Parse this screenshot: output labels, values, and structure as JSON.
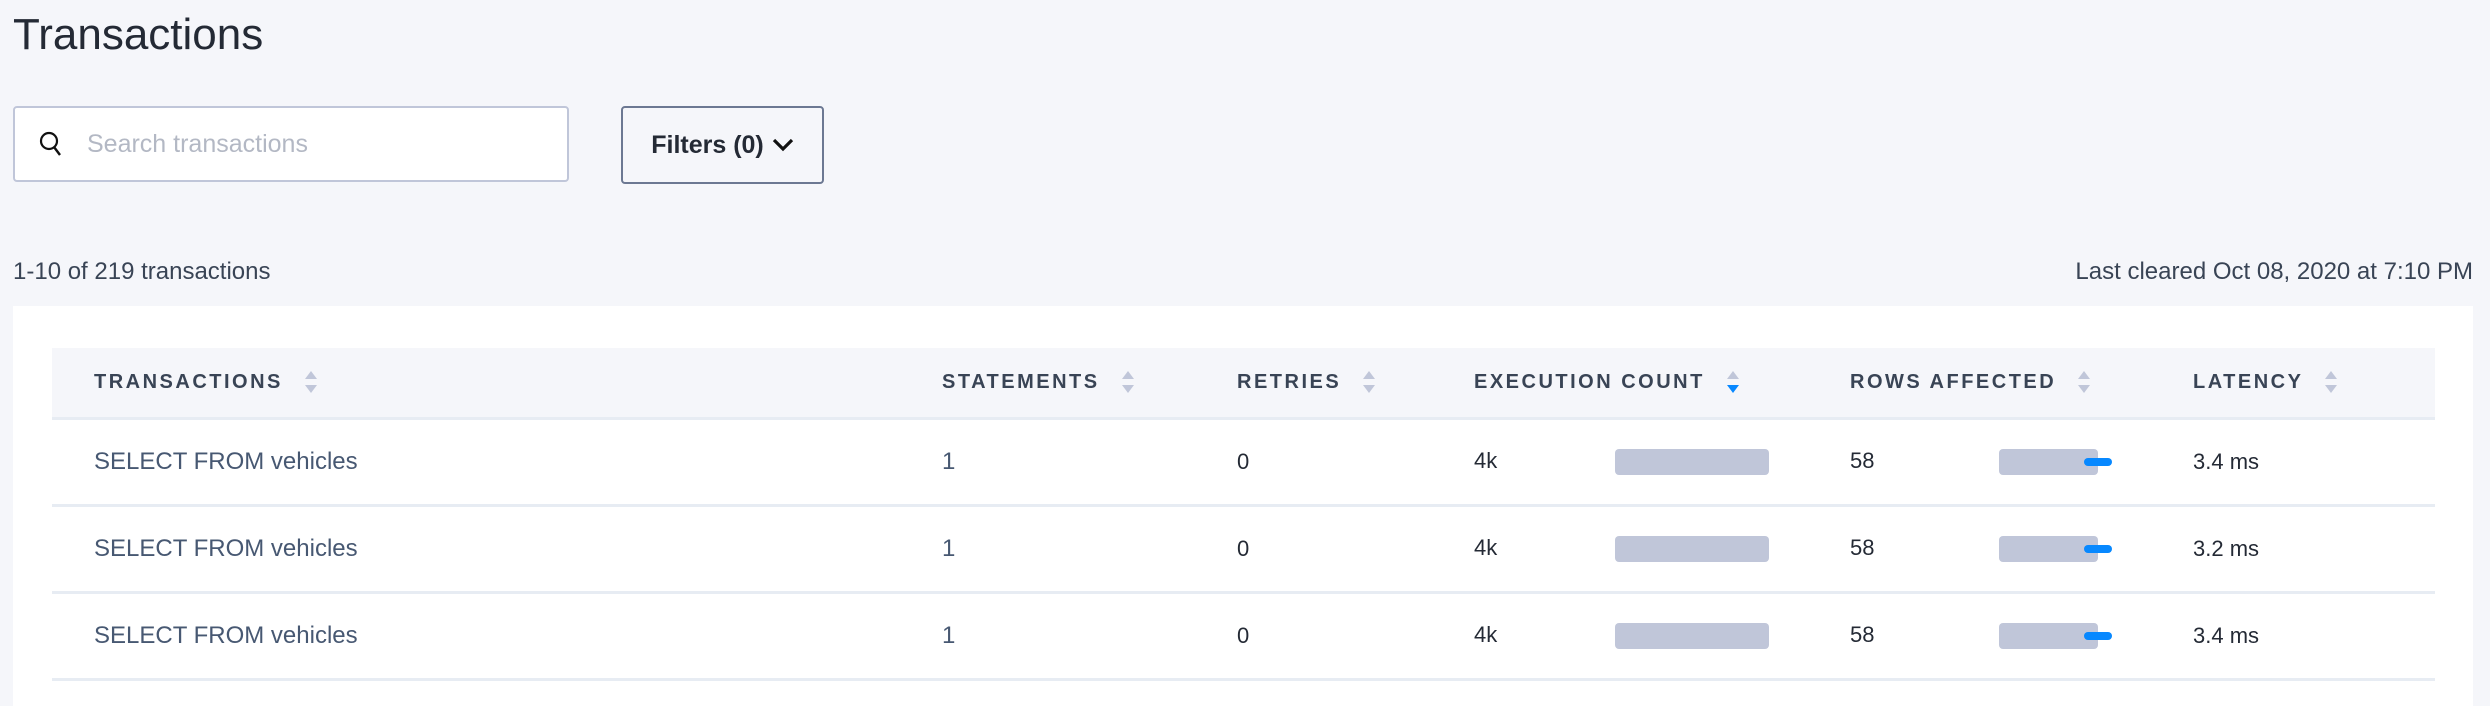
{
  "page": {
    "title": "Transactions"
  },
  "search": {
    "placeholder": "Search transactions",
    "value": ""
  },
  "filters": {
    "label": "Filters (0)"
  },
  "summary": {
    "range": "1-10 of 219 transactions",
    "last_cleared": "Last cleared Oct 08, 2020 at 7:10 PM"
  },
  "colors": {
    "accent": "#0788ff",
    "bar": "#c0c6d9"
  },
  "table": {
    "columns": [
      {
        "label": "TRANSACTIONS",
        "sort": "none"
      },
      {
        "label": "STATEMENTS",
        "sort": "none"
      },
      {
        "label": "RETRIES",
        "sort": "none"
      },
      {
        "label": "EXECUTION COUNT",
        "sort": "descending"
      },
      {
        "label": "ROWS AFFECTED",
        "sort": "none"
      },
      {
        "label": "LATENCY",
        "sort": "none"
      }
    ],
    "rows": [
      {
        "transaction": "SELECT FROM vehicles",
        "statements": "1",
        "retries": "0",
        "execution_count": "4k",
        "execution_bar_fraction": 1.0,
        "rows_affected": "58",
        "rows_bar_fraction": 0.6,
        "latency": "3.4 ms"
      },
      {
        "transaction": "SELECT FROM vehicles",
        "statements": "1",
        "retries": "0",
        "execution_count": "4k",
        "execution_bar_fraction": 1.0,
        "rows_affected": "58",
        "rows_bar_fraction": 0.6,
        "latency": "3.2 ms"
      },
      {
        "transaction": "SELECT FROM vehicles",
        "statements": "1",
        "retries": "0",
        "execution_count": "4k",
        "execution_bar_fraction": 1.0,
        "rows_affected": "58",
        "rows_bar_fraction": 0.6,
        "latency": "3.4 ms"
      }
    ]
  }
}
